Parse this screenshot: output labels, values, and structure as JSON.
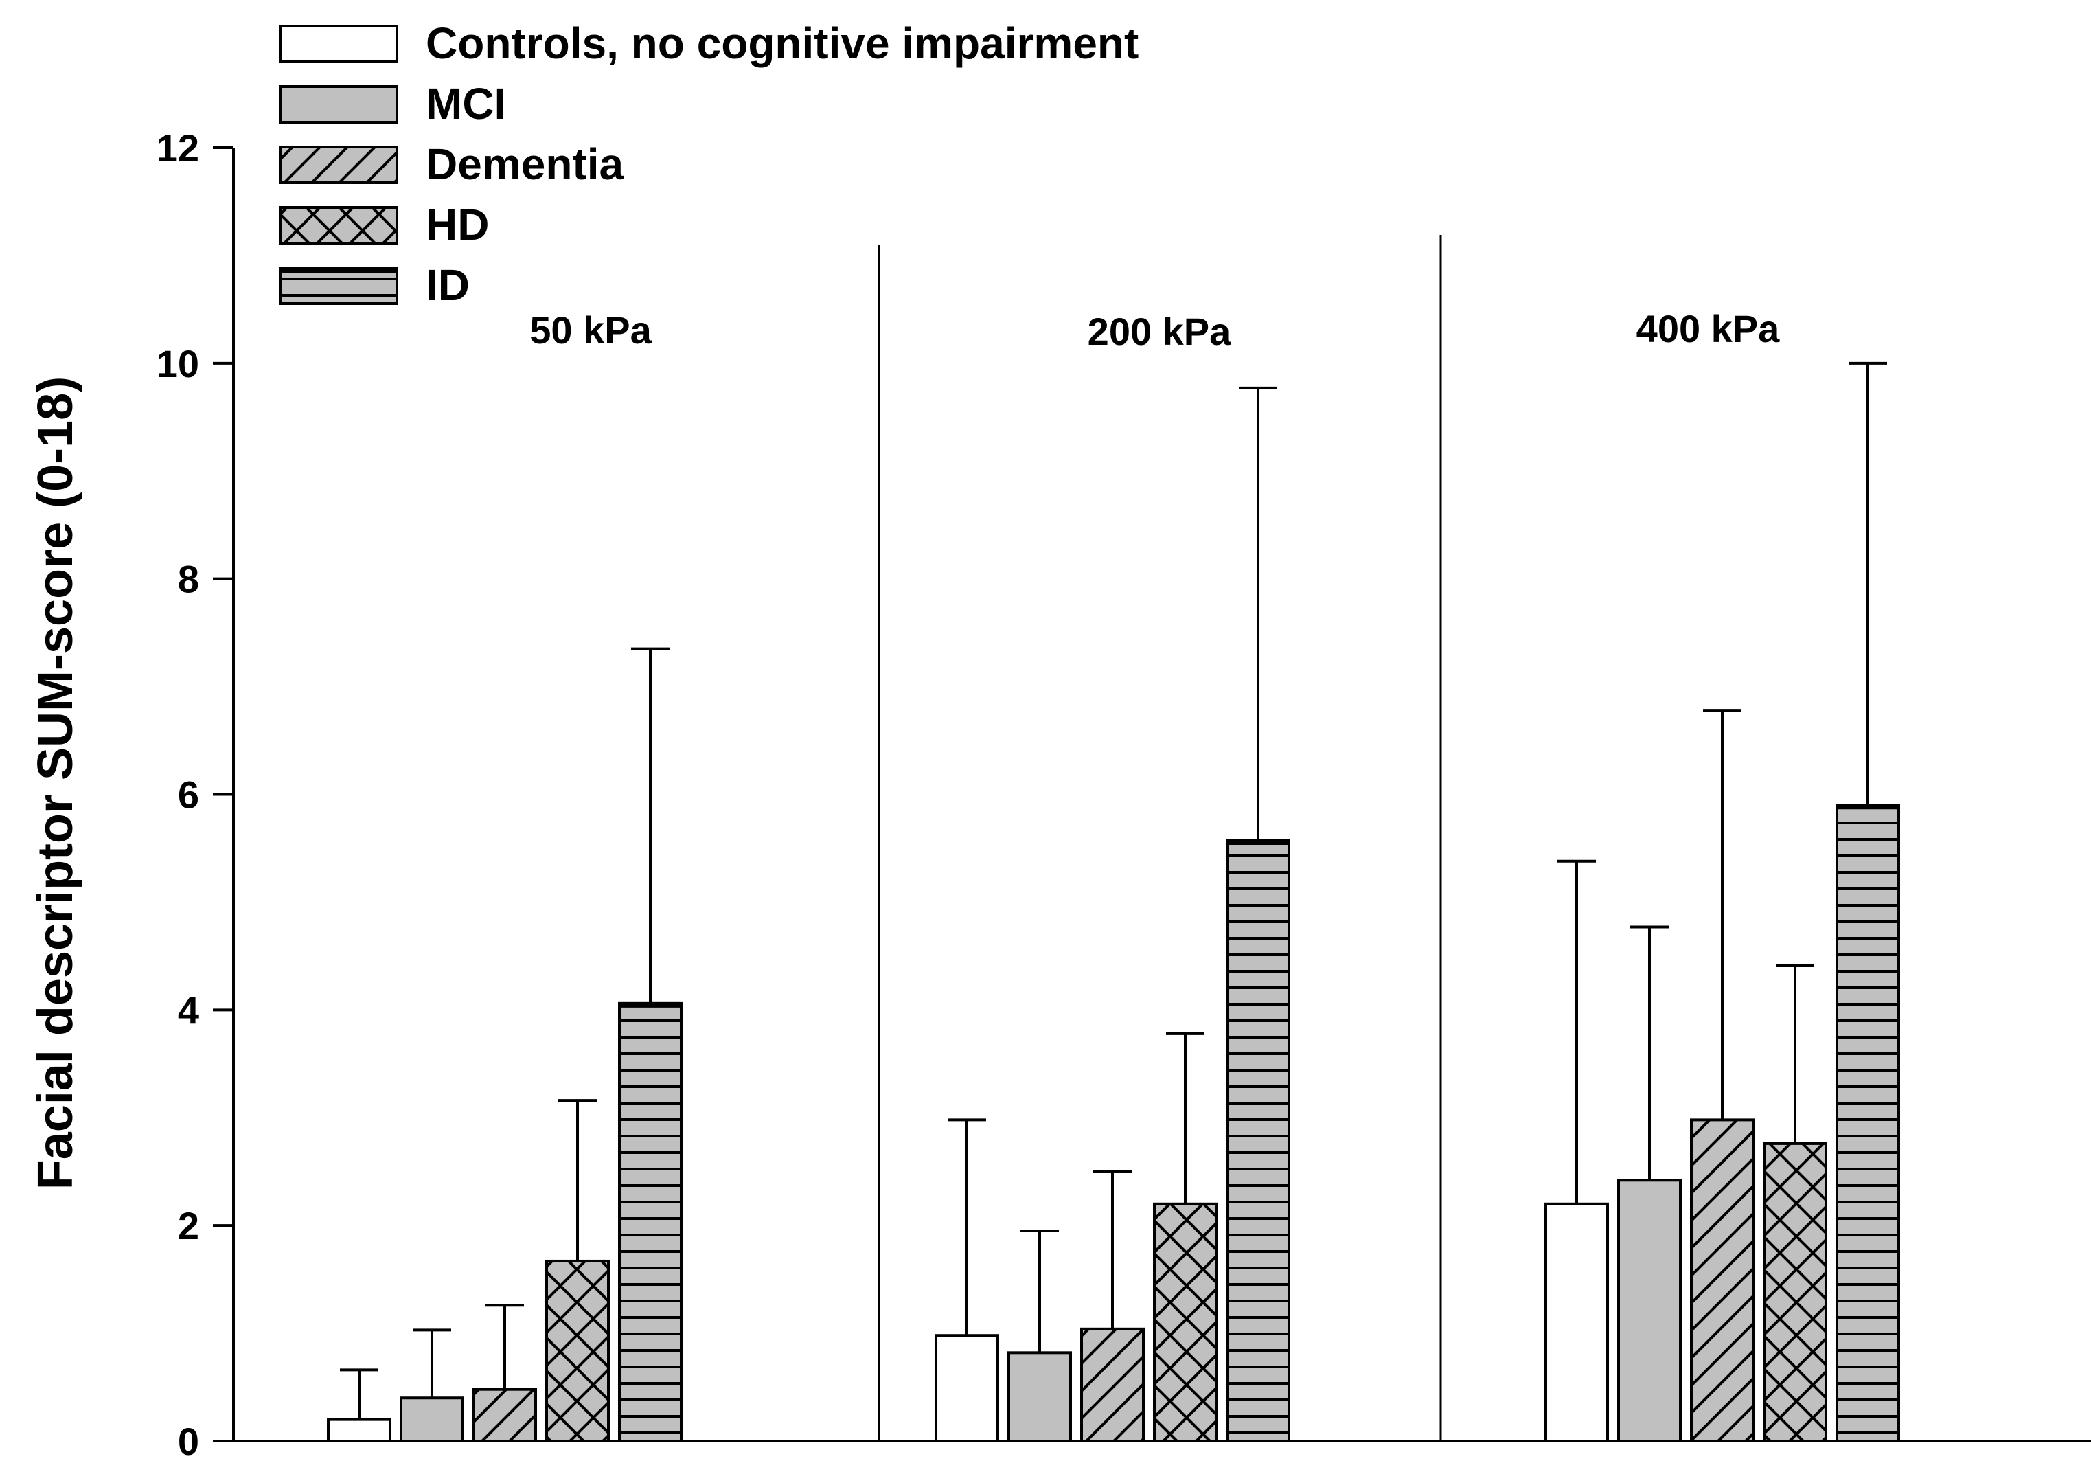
{
  "chart_data": {
    "type": "bar",
    "title": "",
    "xlabel": "",
    "ylabel": "Facial descriptor SUM-score (0-18)",
    "ylim": [
      0,
      12
    ],
    "yticks": [
      "0",
      "2",
      "4",
      "6",
      "8",
      "10",
      "12"
    ],
    "categories": [
      "50 kPa",
      "200 kPa",
      "400 kPa"
    ],
    "legend_position": "top-left",
    "series": [
      {
        "name": "Controls, no cognitive impairment",
        "pattern": "white",
        "values": [
          0.2,
          0.98,
          2.2
        ],
        "error": [
          0.46,
          2.0,
          3.18
        ]
      },
      {
        "name": "MCI",
        "pattern": "gray",
        "values": [
          0.4,
          0.82,
          2.42
        ],
        "error": [
          0.63,
          1.13,
          2.35
        ]
      },
      {
        "name": "Dementia",
        "pattern": "diagonal",
        "values": [
          0.48,
          1.04,
          2.98
        ],
        "error": [
          0.78,
          1.46,
          3.8
        ]
      },
      {
        "name": "HD",
        "pattern": "crosshatch",
        "values": [
          1.67,
          2.2,
          2.76
        ],
        "error": [
          1.49,
          1.58,
          1.65
        ]
      },
      {
        "name": "ID",
        "pattern": "horizontal",
        "values": [
          4.06,
          5.57,
          5.9
        ],
        "error": [
          3.29,
          4.2,
          4.1
        ]
      }
    ],
    "colors": {
      "gray": "#c0c0c0",
      "white": "#ffffff",
      "line": "#000000"
    }
  }
}
